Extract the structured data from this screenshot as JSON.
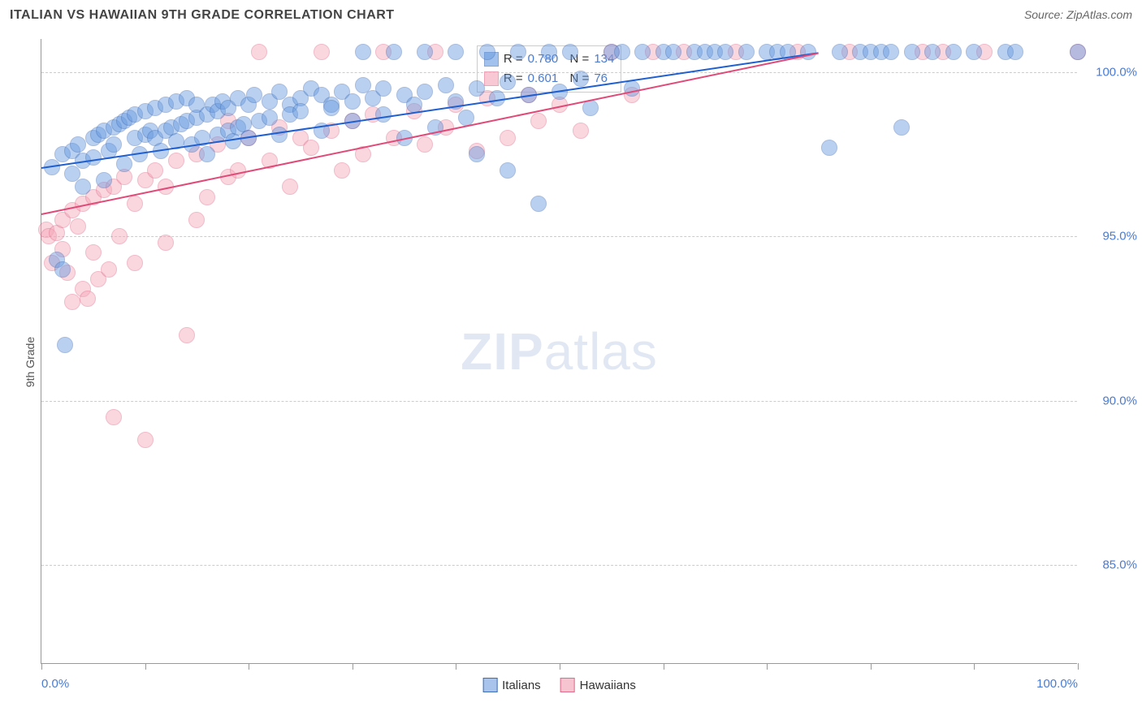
{
  "title": "ITALIAN VS HAWAIIAN 9TH GRADE CORRELATION CHART",
  "source": "Source: ZipAtlas.com",
  "ylabel": "9th Grade",
  "watermark_zip": "ZIP",
  "watermark_atlas": "atlas",
  "chart": {
    "type": "scatter",
    "ylim": [
      82,
      101
    ],
    "xlim": [
      0,
      100
    ],
    "ytick_values": [
      85.0,
      90.0,
      95.0,
      100.0
    ],
    "ytick_labels": [
      "85.0%",
      "90.0%",
      "95.0%",
      "100.0%"
    ],
    "xtick_positions": [
      0,
      10,
      20,
      30,
      40,
      50,
      60,
      70,
      80,
      90,
      100
    ],
    "xtick_label_left": "0.0%",
    "xtick_label_right": "100.0%",
    "background_color": "#ffffff",
    "grid_color": "#cccccc",
    "ytick_label_color": "#4a7bd0",
    "marker_radius": 10,
    "marker_opacity": 0.45,
    "marker_stroke_opacity": 0.85,
    "series": [
      {
        "name": "Italians",
        "color": "#6699e0",
        "stroke": "#3d6db8",
        "stats": {
          "R": "0.780",
          "N": "134"
        },
        "trend": {
          "x1": 0,
          "y1": 97.1,
          "x2": 75,
          "y2": 100.6,
          "color": "#1f5fd0",
          "width": 2
        },
        "points": [
          [
            1,
            97.1
          ],
          [
            1.5,
            94.3
          ],
          [
            2,
            97.5
          ],
          [
            2,
            94.0
          ],
          [
            2.3,
            91.7
          ],
          [
            3,
            97.6
          ],
          [
            3,
            96.9
          ],
          [
            3.5,
            97.8
          ],
          [
            4,
            97.3
          ],
          [
            4,
            96.5
          ],
          [
            5,
            98.0
          ],
          [
            5,
            97.4
          ],
          [
            5.5,
            98.1
          ],
          [
            6,
            96.7
          ],
          [
            6,
            98.2
          ],
          [
            6.5,
            97.6
          ],
          [
            7,
            98.3
          ],
          [
            7,
            97.8
          ],
          [
            7.5,
            98.4
          ],
          [
            8,
            97.2
          ],
          [
            8,
            98.5
          ],
          [
            8.5,
            98.6
          ],
          [
            9,
            98.0
          ],
          [
            9,
            98.7
          ],
          [
            9.5,
            97.5
          ],
          [
            10,
            98.8
          ],
          [
            10,
            98.1
          ],
          [
            10.5,
            98.2
          ],
          [
            11,
            98.9
          ],
          [
            11,
            98.0
          ],
          [
            11.5,
            97.6
          ],
          [
            12,
            99.0
          ],
          [
            12,
            98.2
          ],
          [
            12.5,
            98.3
          ],
          [
            13,
            99.1
          ],
          [
            13,
            97.9
          ],
          [
            13.5,
            98.4
          ],
          [
            14,
            99.2
          ],
          [
            14,
            98.5
          ],
          [
            14.5,
            97.8
          ],
          [
            15,
            98.6
          ],
          [
            15,
            99.0
          ],
          [
            15.5,
            98.0
          ],
          [
            16,
            98.7
          ],
          [
            16,
            97.5
          ],
          [
            16.5,
            99.0
          ],
          [
            17,
            98.1
          ],
          [
            17,
            98.8
          ],
          [
            17.5,
            99.1
          ],
          [
            18,
            98.2
          ],
          [
            18,
            98.9
          ],
          [
            18.5,
            97.9
          ],
          [
            19,
            99.2
          ],
          [
            19,
            98.3
          ],
          [
            19.5,
            98.4
          ],
          [
            20,
            99.0
          ],
          [
            20,
            98.0
          ],
          [
            20.5,
            99.3
          ],
          [
            21,
            98.5
          ],
          [
            22,
            99.1
          ],
          [
            22,
            98.6
          ],
          [
            23,
            99.4
          ],
          [
            23,
            98.1
          ],
          [
            24,
            99.0
          ],
          [
            24,
            98.7
          ],
          [
            25,
            99.2
          ],
          [
            25,
            98.8
          ],
          [
            26,
            99.5
          ],
          [
            27,
            98.2
          ],
          [
            27,
            99.3
          ],
          [
            28,
            99.0
          ],
          [
            28,
            98.9
          ],
          [
            29,
            99.4
          ],
          [
            30,
            98.5
          ],
          [
            30,
            99.1
          ],
          [
            31,
            99.6
          ],
          [
            31,
            100.6
          ],
          [
            32,
            99.2
          ],
          [
            33,
            98.7
          ],
          [
            33,
            99.5
          ],
          [
            34,
            100.6
          ],
          [
            35,
            99.3
          ],
          [
            35,
            98.0
          ],
          [
            36,
            99.0
          ],
          [
            37,
            100.6
          ],
          [
            37,
            99.4
          ],
          [
            38,
            98.3
          ],
          [
            39,
            99.6
          ],
          [
            40,
            99.1
          ],
          [
            40,
            100.6
          ],
          [
            41,
            98.6
          ],
          [
            42,
            99.5
          ],
          [
            42,
            97.5
          ],
          [
            43,
            100.6
          ],
          [
            44,
            99.2
          ],
          [
            45,
            99.7
          ],
          [
            45,
            97.0
          ],
          [
            46,
            100.6
          ],
          [
            47,
            99.3
          ],
          [
            48,
            96.0
          ],
          [
            49,
            100.6
          ],
          [
            50,
            99.4
          ],
          [
            51,
            100.6
          ],
          [
            52,
            99.8
          ],
          [
            53,
            98.9
          ],
          [
            55,
            100.6
          ],
          [
            56,
            100.6
          ],
          [
            57,
            99.5
          ],
          [
            58,
            100.6
          ],
          [
            60,
            100.6
          ],
          [
            61,
            100.6
          ],
          [
            63,
            100.6
          ],
          [
            64,
            100.6
          ],
          [
            65,
            100.6
          ],
          [
            66,
            100.6
          ],
          [
            68,
            100.6
          ],
          [
            70,
            100.6
          ],
          [
            71,
            100.6
          ],
          [
            72,
            100.6
          ],
          [
            74,
            100.6
          ],
          [
            76,
            97.7
          ],
          [
            77,
            100.6
          ],
          [
            79,
            100.6
          ],
          [
            80,
            100.6
          ],
          [
            81,
            100.6
          ],
          [
            82,
            100.6
          ],
          [
            83,
            98.3
          ],
          [
            84,
            100.6
          ],
          [
            86,
            100.6
          ],
          [
            88,
            100.6
          ],
          [
            90,
            100.6
          ],
          [
            93,
            100.6
          ],
          [
            94,
            100.6
          ],
          [
            100,
            100.6
          ]
        ]
      },
      {
        "name": "Hawaiians",
        "color": "#f4a6b8",
        "stroke": "#e06a8a",
        "stats": {
          "R": "0.601",
          "N": "76"
        },
        "trend": {
          "x1": 0,
          "y1": 95.7,
          "x2": 75,
          "y2": 100.6,
          "color": "#e04a78",
          "width": 2
        },
        "points": [
          [
            0.5,
            95.2
          ],
          [
            0.7,
            95.0
          ],
          [
            1,
            94.2
          ],
          [
            1.5,
            95.1
          ],
          [
            2,
            95.5
          ],
          [
            2,
            94.6
          ],
          [
            2.5,
            93.9
          ],
          [
            3,
            95.8
          ],
          [
            3,
            93.0
          ],
          [
            3.5,
            95.3
          ],
          [
            4,
            93.4
          ],
          [
            4,
            96.0
          ],
          [
            4.5,
            93.1
          ],
          [
            5,
            96.2
          ],
          [
            5,
            94.5
          ],
          [
            5.5,
            93.7
          ],
          [
            6,
            96.4
          ],
          [
            6.5,
            94.0
          ],
          [
            7,
            96.5
          ],
          [
            7,
            89.5
          ],
          [
            7.5,
            95.0
          ],
          [
            8,
            96.8
          ],
          [
            9,
            96.0
          ],
          [
            9,
            94.2
          ],
          [
            10,
            96.7
          ],
          [
            10,
            88.8
          ],
          [
            11,
            97.0
          ],
          [
            12,
            96.5
          ],
          [
            12,
            94.8
          ],
          [
            13,
            97.3
          ],
          [
            14,
            92.0
          ],
          [
            15,
            97.5
          ],
          [
            15,
            95.5
          ],
          [
            16,
            96.2
          ],
          [
            17,
            97.8
          ],
          [
            18,
            96.8
          ],
          [
            18,
            98.5
          ],
          [
            19,
            97.0
          ],
          [
            20,
            98.0
          ],
          [
            21,
            100.6
          ],
          [
            22,
            97.3
          ],
          [
            23,
            98.3
          ],
          [
            24,
            96.5
          ],
          [
            25,
            98.0
          ],
          [
            26,
            97.7
          ],
          [
            27,
            100.6
          ],
          [
            28,
            98.2
          ],
          [
            29,
            97.0
          ],
          [
            30,
            98.5
          ],
          [
            31,
            97.5
          ],
          [
            32,
            98.7
          ],
          [
            33,
            100.6
          ],
          [
            34,
            98.0
          ],
          [
            36,
            98.8
          ],
          [
            37,
            97.8
          ],
          [
            38,
            100.6
          ],
          [
            39,
            98.3
          ],
          [
            40,
            99.0
          ],
          [
            42,
            97.6
          ],
          [
            43,
            99.2
          ],
          [
            45,
            98.0
          ],
          [
            47,
            99.3
          ],
          [
            48,
            98.5
          ],
          [
            50,
            99.0
          ],
          [
            52,
            98.2
          ],
          [
            55,
            100.6
          ],
          [
            57,
            99.3
          ],
          [
            59,
            100.6
          ],
          [
            62,
            100.6
          ],
          [
            67,
            100.6
          ],
          [
            73,
            100.6
          ],
          [
            78,
            100.6
          ],
          [
            85,
            100.6
          ],
          [
            87,
            100.6
          ],
          [
            91,
            100.6
          ],
          [
            100,
            100.6
          ]
        ]
      }
    ],
    "stats_box": {
      "left_pct": 42,
      "top_y": 100.8
    },
    "legend": [
      {
        "label": "Italians",
        "fill": "#a8c4ec",
        "stroke": "#3d6db8"
      },
      {
        "label": "Hawaiians",
        "fill": "#f6c3d0",
        "stroke": "#e06a8a"
      }
    ]
  }
}
